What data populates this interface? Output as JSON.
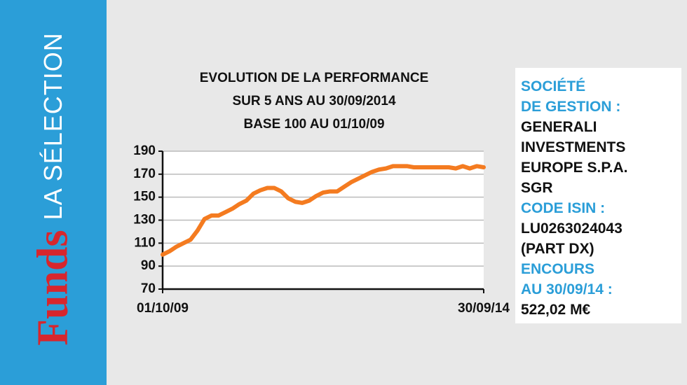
{
  "sidebar": {
    "brand": "Funds",
    "subtitle": "LA SÉLECTION"
  },
  "chart_data": {
    "type": "line",
    "title": [
      "EVOLUTION DE LA PERFORMANCE",
      "SUR 5 ANS AU 30/09/2014",
      "BASE 100 AU 01/10/09"
    ],
    "categories": [
      "01/10/09",
      null,
      null,
      null,
      null,
      null,
      null,
      null,
      null,
      null,
      null,
      null,
      null,
      null,
      null,
      null,
      null,
      null,
      null,
      null,
      null,
      null,
      null,
      null,
      null,
      null,
      null,
      null,
      null,
      null,
      null,
      null,
      null,
      null,
      null,
      null,
      null,
      null,
      null,
      null,
      null,
      null,
      null,
      null,
      null,
      null,
      "30/09/14"
    ],
    "series": [
      {
        "color": "#f47b20",
        "values": [
          100,
          103,
          107,
          110,
          113,
          121,
          131,
          134,
          134,
          137,
          140,
          144,
          147,
          153,
          156,
          158,
          158,
          155,
          149,
          146,
          145,
          147,
          151,
          154,
          155,
          155,
          159,
          163,
          166,
          169,
          172,
          174,
          175,
          177,
          177,
          177,
          176,
          176,
          176,
          176,
          176,
          176,
          175,
          177,
          175,
          177,
          176
        ]
      }
    ],
    "ylim": [
      70,
      190
    ],
    "yticks": [
      70,
      90,
      110,
      130,
      150,
      170,
      190
    ],
    "grid": true
  },
  "info": {
    "blocks": [
      {
        "label": [
          "SOCIÉTÉ",
          "DE GESTION :"
        ],
        "value": [
          "GENERALI",
          "INVESTMENTS",
          "EUROPE S.P.A.",
          "SGR"
        ]
      },
      {
        "label": [
          "CODE ISIN :"
        ],
        "value": [
          "LU0263024043",
          "(PART DX)"
        ]
      },
      {
        "label": [
          "ENCOURS",
          "AU 30/09/14 :"
        ],
        "value": [
          "522,02 M€"
        ]
      }
    ]
  }
}
